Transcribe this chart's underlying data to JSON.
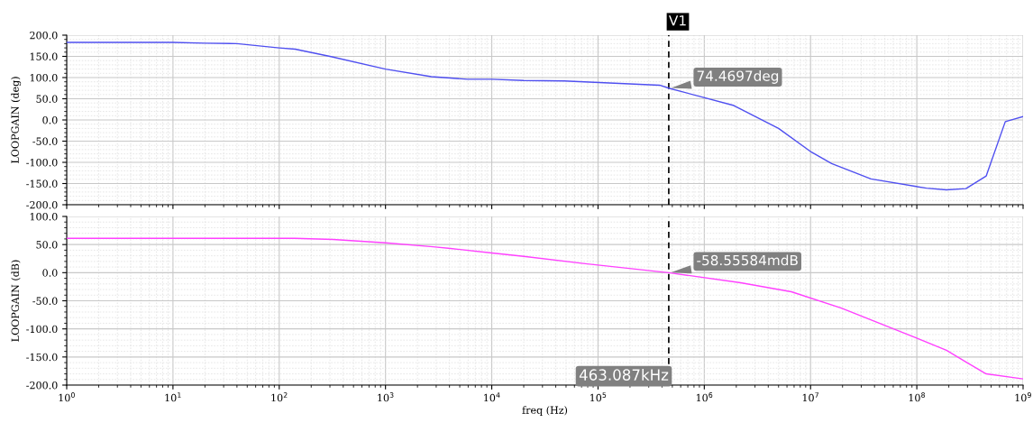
{
  "chart_data": [
    {
      "type": "line",
      "ylabel": "LOOPGAIN (deg)",
      "log": "x",
      "grid": true,
      "tick_labels": "y",
      "xlim": [
        1,
        1000000000
      ],
      "xticks": [
        {
          "value": 1,
          "label": null
        },
        {
          "value": 10,
          "label": null
        },
        {
          "value": 100,
          "label": null
        },
        {
          "value": 1000,
          "label": null
        },
        {
          "value": 10000,
          "label": null
        },
        {
          "value": 100000,
          "label": null
        },
        {
          "value": 1000000,
          "label": null
        },
        {
          "value": 10000000,
          "label": null
        },
        {
          "value": 100000000,
          "label": null
        },
        {
          "value": 1000000000,
          "label": null
        }
      ],
      "ylim": [
        -200,
        200
      ],
      "yticks": [
        {
          "value": -200,
          "label": "-200.0"
        },
        {
          "value": -150,
          "label": "-150.0"
        },
        {
          "value": -100,
          "label": "-100.0"
        },
        {
          "value": -50,
          "label": "-50.0"
        },
        {
          "value": 0,
          "label": "0.0"
        },
        {
          "value": 50,
          "label": "50.0"
        },
        {
          "value": 100,
          "label": "100.0"
        },
        {
          "value": 150,
          "label": "150.0"
        },
        {
          "value": 200,
          "label": "200.0"
        }
      ],
      "series": [
        {
          "color": "#4f4ff0",
          "x": [
            1,
            10,
            20,
            40,
            100,
            141,
            300,
            1000,
            2700,
            5900,
            10000,
            20000,
            47900,
            380000,
            463087,
            1900000,
            5000000,
            10200000,
            15800000,
            37000000,
            123000000,
            190000000,
            290000000,
            450000000,
            680000000,
            1000000000
          ],
          "values": [
            183,
            183,
            181,
            180,
            170,
            167,
            150,
            120,
            102,
            96,
            96,
            93,
            92,
            82,
            75,
            34,
            -20,
            -76,
            -103,
            -139,
            -161,
            -165,
            -162,
            -132,
            -4,
            8
          ]
        }
      ],
      "ref_lines": [
        {
          "axis": "x",
          "value": 463087,
          "label": "V1",
          "color": "#000000",
          "line_style": "dashed"
        }
      ],
      "annotations": [
        {
          "text": "74.4697deg",
          "x": 463087,
          "y": 74.4697
        }
      ]
    },
    {
      "type": "line",
      "ylabel": "LOOPGAIN (dB)",
      "xlabel": "freq (Hz)",
      "log": "x",
      "grid": true,
      "xlim": [
        1,
        1000000000
      ],
      "xticks": [
        {
          "value": 1,
          "label": "10$^{0}$"
        },
        {
          "value": 10,
          "label": "10$^{1}$"
        },
        {
          "value": 100,
          "label": "10$^{2}$"
        },
        {
          "value": 1000,
          "label": "10$^{3}$"
        },
        {
          "value": 10000,
          "label": "10$^{4}$"
        },
        {
          "value": 100000,
          "label": "10$^{5}$"
        },
        {
          "value": 1000000,
          "label": "10$^{6}$"
        },
        {
          "value": 10000000,
          "label": "10$^{7}$"
        },
        {
          "value": 100000000,
          "label": "10$^{8}$"
        },
        {
          "value": 1000000000,
          "label": "10$^{9}$"
        }
      ],
      "ylim": [
        -200,
        100
      ],
      "yticks": [
        {
          "value": -200,
          "label": "-200.0"
        },
        {
          "value": -150,
          "label": "-150.0"
        },
        {
          "value": -100,
          "label": "-100.0"
        },
        {
          "value": -50,
          "label": "-50.0"
        },
        {
          "value": 0,
          "label": "0.0"
        },
        {
          "value": 50,
          "label": "50.0"
        },
        {
          "value": 100,
          "label": "100.0"
        }
      ],
      "series": [
        {
          "color": "#ff40ff",
          "x": [
            1,
            10,
            100,
            141,
            320,
            1000,
            2800,
            4100,
            10000,
            20000,
            76000,
            463087,
            2200000,
            6600000,
            19500000,
            85000000,
            190000000,
            290000000,
            450000000,
            1000000000
          ],
          "values": [
            61,
            61,
            61,
            61,
            59,
            53,
            46,
            43,
            35,
            29,
            16,
            0,
            -18,
            -34,
            -63,
            -111,
            -138,
            -159,
            -180,
            -189
          ]
        }
      ],
      "ref_lines": [
        {
          "axis": "x",
          "value": 463087,
          "label": null,
          "color": "#000000",
          "line_style": "dashed"
        }
      ],
      "annotations": [
        {
          "text": "-58.55584mdB",
          "x": 463087,
          "y": -0.05855584
        },
        "463.087kHz"
      ]
    }
  ]
}
